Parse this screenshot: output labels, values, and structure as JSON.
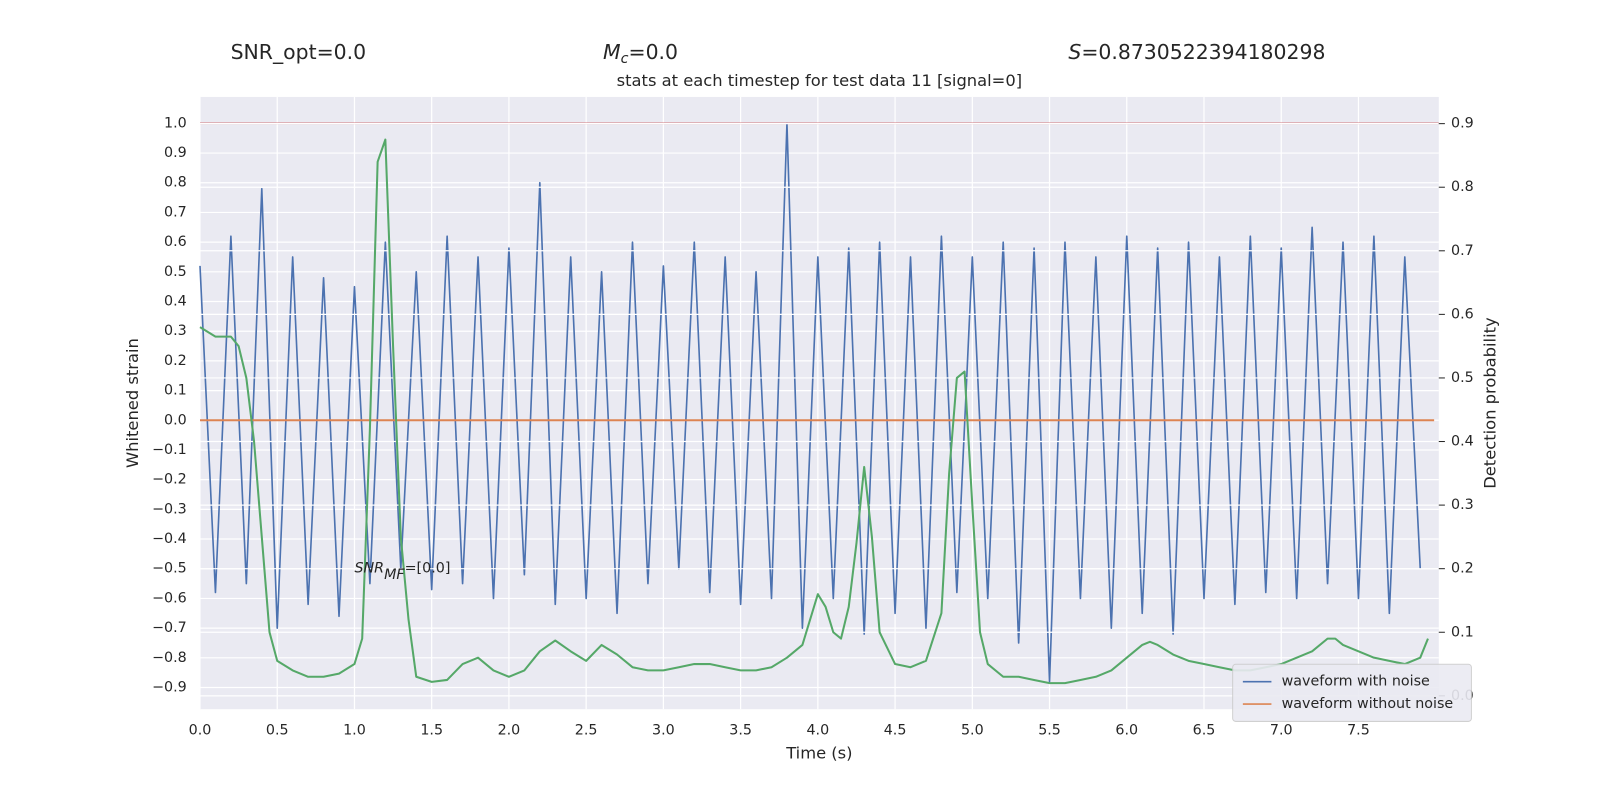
{
  "chart_data": {
    "type": "line",
    "title": "stats at each timestep for test data 11 [signal=0]",
    "header": [
      {
        "text": "SNR_opt=0.0"
      },
      {
        "symbol": "M",
        "subscript": "c",
        "text": "=0.0"
      },
      {
        "symbol": "S",
        "text": "=0.8730522394180298"
      }
    ],
    "annotation": {
      "symbol": "SNR",
      "subscript": "MF",
      "text": "=[0.0]",
      "x": 1.0,
      "y": -0.5
    },
    "xlabel": "Time (s)",
    "ylabel": "Whitened strain",
    "y2label": "Detection probability",
    "xlim": [
      0,
      8.02
    ],
    "ylim": [
      -0.973,
      1.089
    ],
    "y2lim": [
      -0.021,
      0.942
    ],
    "xticks": [
      {
        "value": 0,
        "label": "0.0"
      },
      {
        "value": 0.5,
        "label": "0.5"
      },
      {
        "value": 1,
        "label": "1.0"
      },
      {
        "value": 1.5,
        "label": "1.5"
      },
      {
        "value": 2,
        "label": "2.0"
      },
      {
        "value": 2.5,
        "label": "2.5"
      },
      {
        "value": 3,
        "label": "3.0"
      },
      {
        "value": 3.5,
        "label": "3.5"
      },
      {
        "value": 4,
        "label": "4.0"
      },
      {
        "value": 4.5,
        "label": "4.5"
      },
      {
        "value": 5,
        "label": "5.0"
      },
      {
        "value": 5.5,
        "label": "5.5"
      },
      {
        "value": 6,
        "label": "6.0"
      },
      {
        "value": 6.5,
        "label": "6.5"
      },
      {
        "value": 7,
        "label": "7.0"
      },
      {
        "value": 7.5,
        "label": "7.5"
      }
    ],
    "yticks": [
      {
        "value": -0.9,
        "label": "−0.9"
      },
      {
        "value": -0.8,
        "label": "−0.8"
      },
      {
        "value": -0.7,
        "label": "−0.7"
      },
      {
        "value": -0.6,
        "label": "−0.6"
      },
      {
        "value": -0.5,
        "label": "−0.5"
      },
      {
        "value": -0.4,
        "label": "−0.4"
      },
      {
        "value": -0.3,
        "label": "−0.3"
      },
      {
        "value": -0.2,
        "label": "−0.2"
      },
      {
        "value": -0.1,
        "label": "−0.1"
      },
      {
        "value": 0,
        "label": "0.0"
      },
      {
        "value": 0.1,
        "label": "0.1"
      },
      {
        "value": 0.2,
        "label": "0.2"
      },
      {
        "value": 0.3,
        "label": "0.3"
      },
      {
        "value": 0.4,
        "label": "0.4"
      },
      {
        "value": 0.5,
        "label": "0.5"
      },
      {
        "value": 0.6,
        "label": "0.6"
      },
      {
        "value": 0.7,
        "label": "0.7"
      },
      {
        "value": 0.8,
        "label": "0.8"
      },
      {
        "value": 0.9,
        "label": "0.9"
      },
      {
        "value": 1,
        "label": "1.0"
      }
    ],
    "y2ticks": [
      {
        "value": 0,
        "label": "0.0"
      },
      {
        "value": 0.1,
        "label": "0.1"
      },
      {
        "value": 0.2,
        "label": "0.2"
      },
      {
        "value": 0.3,
        "label": "0.3"
      },
      {
        "value": 0.4,
        "label": "0.4"
      },
      {
        "value": 0.5,
        "label": "0.5"
      },
      {
        "value": 0.6,
        "label": "0.6"
      },
      {
        "value": 0.7,
        "label": "0.7"
      },
      {
        "value": 0.8,
        "label": "0.8"
      },
      {
        "value": 0.9,
        "label": "0.9"
      }
    ],
    "grid": true,
    "legend": "lower right",
    "hlines": [
      {
        "value": 1.0,
        "color": "#c44e52"
      }
    ],
    "series": [
      {
        "name": "waveform with noise",
        "color": "#4c72b0",
        "x": [
          0.0,
          0.1,
          0.2,
          0.3,
          0.4,
          0.5,
          0.6,
          0.7,
          0.8,
          0.9,
          1.0,
          1.1,
          1.2,
          1.3,
          1.4,
          1.5,
          1.6,
          1.7,
          1.8,
          1.9,
          2.0,
          2.1,
          2.2,
          2.3,
          2.4,
          2.5,
          2.6,
          2.7,
          2.8,
          2.9,
          3.0,
          3.1,
          3.2,
          3.3,
          3.4,
          3.5,
          3.6,
          3.7,
          3.8,
          3.9,
          4.0,
          4.1,
          4.2,
          4.3,
          4.4,
          4.5,
          4.6,
          4.7,
          4.8,
          4.9,
          5.0,
          5.1,
          5.2,
          5.3,
          5.4,
          5.5,
          5.6,
          5.7,
          5.8,
          5.9,
          6.0,
          6.1,
          6.2,
          6.3,
          6.4,
          6.5,
          6.6,
          6.7,
          6.8,
          6.9,
          7.0,
          7.1,
          7.2,
          7.3,
          7.4,
          7.5,
          7.6,
          7.7,
          7.8,
          7.9
        ],
        "values": [
          0.52,
          -0.58,
          0.62,
          -0.55,
          0.78,
          -0.7,
          0.55,
          -0.62,
          0.48,
          -0.66,
          0.45,
          -0.55,
          0.6,
          -0.5,
          0.5,
          -0.57,
          0.62,
          -0.55,
          0.55,
          -0.6,
          0.58,
          -0.52,
          0.8,
          -0.62,
          0.55,
          -0.6,
          0.5,
          -0.65,
          0.6,
          -0.55,
          0.52,
          -0.5,
          0.6,
          -0.58,
          0.55,
          -0.62,
          0.5,
          -0.6,
          1.0,
          -0.7,
          0.55,
          -0.6,
          0.58,
          -0.72,
          0.6,
          -0.65,
          0.55,
          -0.7,
          0.62,
          -0.58,
          0.55,
          -0.6,
          0.6,
          -0.75,
          0.58,
          -0.88,
          0.6,
          -0.6,
          0.55,
          -0.7,
          0.62,
          -0.65,
          0.58,
          -0.72,
          0.6,
          -0.6,
          0.55,
          -0.62,
          0.62,
          -0.58,
          0.58,
          -0.6,
          0.65,
          -0.55,
          0.6,
          -0.6,
          0.62,
          -0.65,
          0.55,
          -0.5
        ]
      },
      {
        "name": "waveform without noise",
        "color": "#dd8452",
        "x": [
          0.0,
          7.99
        ],
        "values": [
          0,
          0
        ]
      },
      {
        "color": "#55a868",
        "axis": "y2",
        "x": [
          0.0,
          0.1,
          0.2,
          0.25,
          0.3,
          0.35,
          0.4,
          0.45,
          0.5,
          0.6,
          0.7,
          0.8,
          0.9,
          1.0,
          1.05,
          1.1,
          1.15,
          1.2,
          1.25,
          1.3,
          1.35,
          1.4,
          1.5,
          1.6,
          1.7,
          1.8,
          1.9,
          2.0,
          2.1,
          2.2,
          2.3,
          2.4,
          2.5,
          2.6,
          2.7,
          2.8,
          2.9,
          3.0,
          3.1,
          3.2,
          3.3,
          3.4,
          3.5,
          3.6,
          3.7,
          3.8,
          3.9,
          4.0,
          4.05,
          4.1,
          4.15,
          4.2,
          4.25,
          4.3,
          4.35,
          4.4,
          4.5,
          4.6,
          4.7,
          4.8,
          4.85,
          4.9,
          4.95,
          5.0,
          5.05,
          5.1,
          5.2,
          5.3,
          5.4,
          5.5,
          5.6,
          5.7,
          5.8,
          5.9,
          6.0,
          6.1,
          6.15,
          6.2,
          6.3,
          6.4,
          6.5,
          6.6,
          6.7,
          6.8,
          6.9,
          7.0,
          7.1,
          7.2,
          7.3,
          7.35,
          7.4,
          7.5,
          7.6,
          7.7,
          7.8,
          7.9,
          7.95
        ],
        "values": [
          0.58,
          0.565,
          0.565,
          0.55,
          0.5,
          0.4,
          0.25,
          0.1,
          0.055,
          0.04,
          0.03,
          0.03,
          0.035,
          0.05,
          0.09,
          0.42,
          0.84,
          0.875,
          0.55,
          0.25,
          0.12,
          0.03,
          0.022,
          0.025,
          0.05,
          0.06,
          0.04,
          0.03,
          0.04,
          0.07,
          0.087,
          0.07,
          0.055,
          0.08,
          0.065,
          0.045,
          0.04,
          0.04,
          0.045,
          0.05,
          0.05,
          0.045,
          0.04,
          0.04,
          0.045,
          0.06,
          0.08,
          0.16,
          0.14,
          0.1,
          0.09,
          0.14,
          0.24,
          0.36,
          0.25,
          0.1,
          0.05,
          0.045,
          0.055,
          0.13,
          0.35,
          0.5,
          0.51,
          0.3,
          0.1,
          0.05,
          0.03,
          0.03,
          0.025,
          0.02,
          0.02,
          0.025,
          0.03,
          0.04,
          0.06,
          0.08,
          0.085,
          0.08,
          0.065,
          0.055,
          0.05,
          0.045,
          0.04,
          0.04,
          0.045,
          0.05,
          0.06,
          0.07,
          0.09,
          0.09,
          0.08,
          0.07,
          0.06,
          0.055,
          0.05,
          0.06,
          0.09
        ]
      }
    ]
  }
}
